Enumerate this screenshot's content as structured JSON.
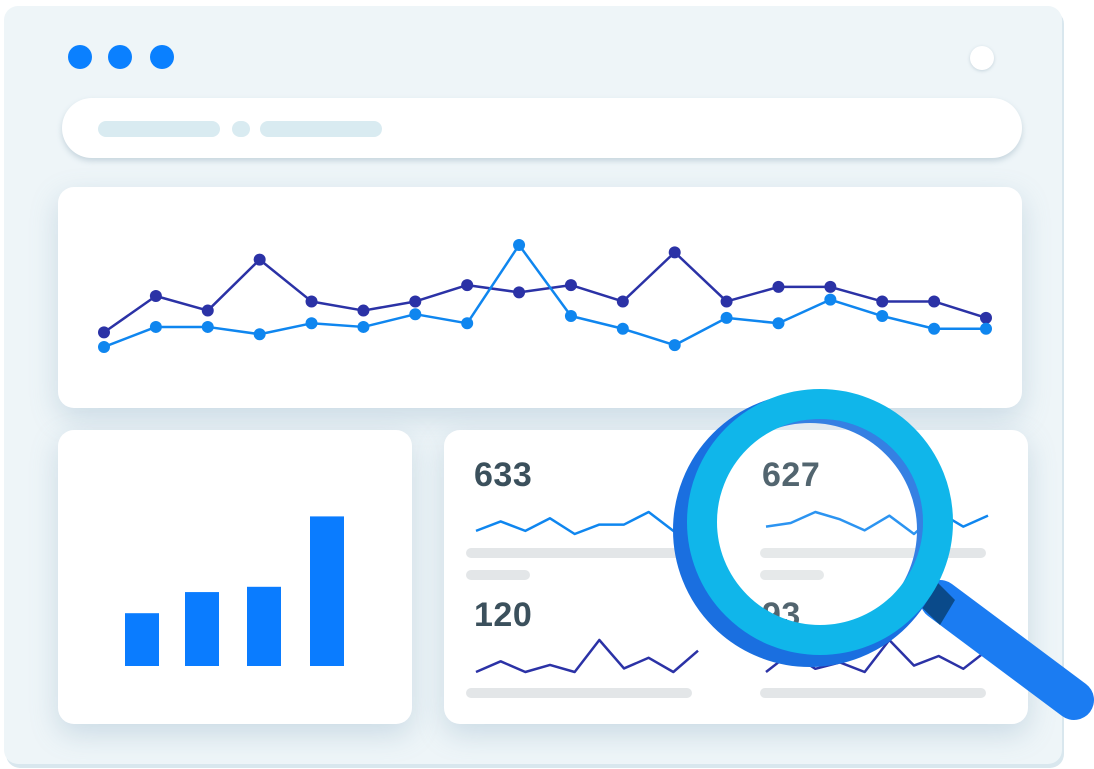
{
  "window": {
    "traffic_dot_color": "#0a80ff",
    "controls": [
      "traffic-dot",
      "traffic-dot",
      "traffic-dot",
      "window-control"
    ]
  },
  "address_bar": {
    "crumbs": [
      "placeholder-long",
      "placeholder-dot",
      "placeholder-long"
    ]
  },
  "chart_data": [
    {
      "type": "line",
      "x": [
        1,
        2,
        3,
        4,
        5,
        6,
        7,
        8,
        9,
        10,
        11,
        12,
        13,
        14,
        15,
        16,
        17,
        18
      ],
      "series": [
        {
          "color": "#2b32a6",
          "values": [
            30,
            50,
            42,
            70,
            47,
            42,
            47,
            56,
            52,
            56,
            47,
            74,
            47,
            55,
            55,
            47,
            47,
            38
          ]
        },
        {
          "color": "#0f86ef",
          "values": [
            22,
            33,
            33,
            29,
            35,
            33,
            40,
            35,
            78,
            39,
            32,
            23,
            38,
            35,
            48,
            39,
            32,
            32
          ]
        }
      ],
      "ylim": [
        0,
        100
      ],
      "grid": false
    },
    {
      "type": "bar",
      "values": [
        30,
        42,
        45,
        85
      ],
      "color": "#0a7cff",
      "ylim": [
        0,
        100
      ]
    },
    {
      "type": "line",
      "values": [
        633,
        627,
        120,
        93
      ],
      "title": "metric-cards"
    }
  ],
  "metrics": [
    {
      "value": "633",
      "spark_color": "#0f86ef",
      "spark": [
        3,
        6,
        3,
        7,
        2,
        5,
        5,
        9,
        3,
        7
      ]
    },
    {
      "value": "627",
      "spark_color": "#0f86ef",
      "spark": [
        3,
        4,
        7,
        5,
        2,
        6,
        1,
        7,
        3,
        6
      ]
    },
    {
      "value": "120",
      "spark_color": "#2b32a6",
      "spark": [
        3,
        6,
        3,
        5,
        3,
        12,
        4,
        7,
        3,
        9
      ]
    },
    {
      "value": "93",
      "spark_color": "#2b32a6",
      "spark": [
        2,
        8,
        3,
        5,
        2,
        12,
        4,
        7,
        3,
        9
      ]
    }
  ],
  "magnifier": {
    "ring_color": "#10b6ea",
    "ring_shadow_color": "#1a6fe0",
    "handle_color": "#1b7cf2",
    "collar_color": "#0a4a8a"
  }
}
